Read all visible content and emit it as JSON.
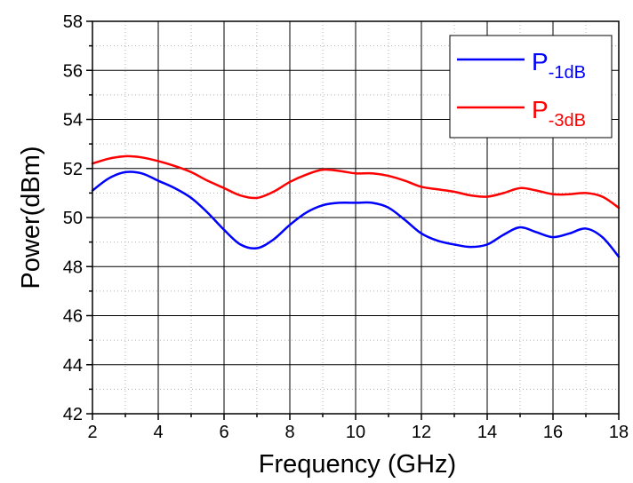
{
  "chart_data": {
    "type": "line",
    "title": "",
    "xlabel": "Frequency  (GHz)",
    "ylabel": "Power(dBm)",
    "xlim": [
      2,
      18
    ],
    "ylim": [
      42,
      58
    ],
    "x_ticks": [
      2,
      4,
      6,
      8,
      10,
      12,
      14,
      16,
      18
    ],
    "y_ticks": [
      42,
      44,
      46,
      48,
      50,
      52,
      54,
      56,
      58
    ],
    "grid": true,
    "legend_position": "top-right",
    "series": [
      {
        "name": "P-1dB",
        "name_main": "P",
        "name_sub": "-1dB",
        "color": "#0000ff",
        "x": [
          2,
          2.5,
          3,
          3.5,
          4,
          4.5,
          5,
          5.5,
          6,
          6.5,
          7,
          7.5,
          8,
          8.5,
          9,
          9.5,
          10,
          10.5,
          11,
          11.5,
          12,
          12.5,
          13,
          13.5,
          14,
          14.5,
          15,
          15.5,
          16,
          16.5,
          17,
          17.5,
          18
        ],
        "y": [
          51.1,
          51.6,
          51.85,
          51.8,
          51.5,
          51.2,
          50.8,
          50.2,
          49.5,
          48.9,
          48.75,
          49.1,
          49.7,
          50.2,
          50.5,
          50.6,
          50.6,
          50.6,
          50.4,
          49.9,
          49.35,
          49.05,
          48.9,
          48.8,
          48.9,
          49.3,
          49.6,
          49.4,
          49.2,
          49.35,
          49.55,
          49.2,
          48.4
        ]
      },
      {
        "name": "P-3dB",
        "name_main": "P",
        "name_sub": "-3dB",
        "color": "#ff0000",
        "x": [
          2,
          2.5,
          3,
          3.5,
          4,
          4.5,
          5,
          5.5,
          6,
          6.5,
          7,
          7.5,
          8,
          8.5,
          9,
          9.5,
          10,
          10.5,
          11,
          11.5,
          12,
          12.5,
          13,
          13.5,
          14,
          14.5,
          15,
          15.5,
          16,
          16.5,
          17,
          17.5,
          18
        ],
        "y": [
          52.2,
          52.4,
          52.5,
          52.45,
          52.3,
          52.1,
          51.85,
          51.5,
          51.2,
          50.9,
          50.8,
          51.05,
          51.45,
          51.75,
          51.95,
          51.9,
          51.8,
          51.8,
          51.7,
          51.5,
          51.25,
          51.15,
          51.05,
          50.9,
          50.85,
          51.0,
          51.2,
          51.1,
          50.95,
          50.95,
          51.0,
          50.85,
          50.4
        ]
      }
    ]
  }
}
